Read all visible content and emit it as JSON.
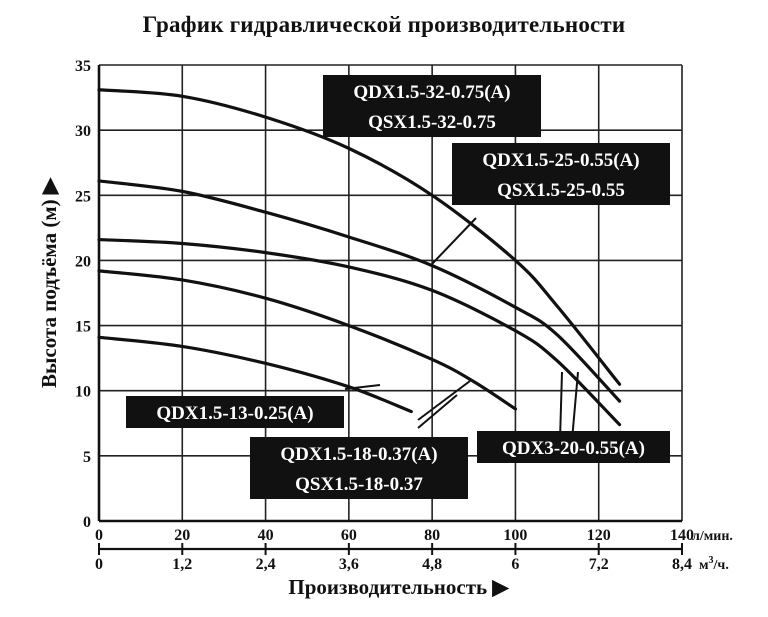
{
  "title": "График гидравлической производительности",
  "chart_data": {
    "type": "line",
    "title": "График гидравлической производительности",
    "ylabel": "Высота подъёма (м)",
    "xlabel": "Производительность",
    "ylabel_marker": "▶",
    "xlabel_marker": "▶",
    "ylim": [
      0,
      35
    ],
    "xlim": [
      0,
      140
    ],
    "grid": true,
    "y_ticks": [
      0,
      5,
      10,
      15,
      20,
      25,
      30,
      35
    ],
    "x_ticks_lpm": [
      0,
      20,
      40,
      60,
      80,
      100,
      120,
      140
    ],
    "x_tick_labels_lpm": [
      "0",
      "20",
      "40",
      "60",
      "80",
      "100",
      "120",
      "140"
    ],
    "x_unit_lpm": "л/мин.",
    "x_ticks_m3h": [
      0,
      1.2,
      2.4,
      3.6,
      4.8,
      6,
      7.2,
      8.4
    ],
    "x_tick_labels_m3h": [
      "0",
      "1,2",
      "2,4",
      "3,6",
      "4,8",
      "6",
      "7,2",
      "8,4"
    ],
    "x_unit_m3h_base": "м",
    "x_unit_m3h_sup": "3",
    "x_unit_m3h_tail": "/ч.",
    "series": [
      {
        "name": "QDX1.5-32-0.75(A) / QSX1.5-32-0.75",
        "x": [
          0,
          20,
          40,
          60,
          80,
          100,
          110,
          125
        ],
        "y": [
          33.1,
          32.6,
          31.0,
          28.6,
          25.0,
          20.0,
          16.5,
          10.5
        ]
      },
      {
        "name": "QDX1.5-25-0.55(A) / QSX1.5-25-0.55",
        "x": [
          0,
          20,
          40,
          60,
          80,
          100,
          110,
          125
        ],
        "y": [
          26.1,
          25.3,
          23.7,
          21.8,
          19.6,
          16.4,
          14.3,
          9.2
        ]
      },
      {
        "name": "QDX3-20-0.55(A)",
        "x": [
          0,
          20,
          40,
          60,
          80,
          100,
          110,
          125
        ],
        "y": [
          21.6,
          21.3,
          20.6,
          19.5,
          17.7,
          14.6,
          12.3,
          7.4
        ]
      },
      {
        "name": "QDX1.5-18-0.37(A) / QSX1.5-18-0.37",
        "x": [
          0,
          20,
          40,
          60,
          80,
          90,
          100
        ],
        "y": [
          19.2,
          18.5,
          17.1,
          15.0,
          12.4,
          10.7,
          8.6
        ]
      },
      {
        "name": "QDX1.5-13-0.25(A)",
        "x": [
          0,
          20,
          40,
          60,
          75
        ],
        "y": [
          14.1,
          13.4,
          12.1,
          10.3,
          8.4
        ]
      }
    ],
    "labels": [
      {
        "lines": [
          "QDX1.5-32-0.75(A)",
          "QSX1.5-32-0.75"
        ]
      },
      {
        "lines": [
          "QDX1.5-25-0.55(A)",
          "QSX1.5-25-0.55"
        ]
      },
      {
        "lines": [
          "QDX1.5-13-0.25(A)"
        ]
      },
      {
        "lines": [
          "QDX1.5-18-0.37(A)",
          "QSX1.5-18-0.37"
        ]
      },
      {
        "lines": [
          "QDX3-20-0.55(A)"
        ]
      }
    ]
  }
}
